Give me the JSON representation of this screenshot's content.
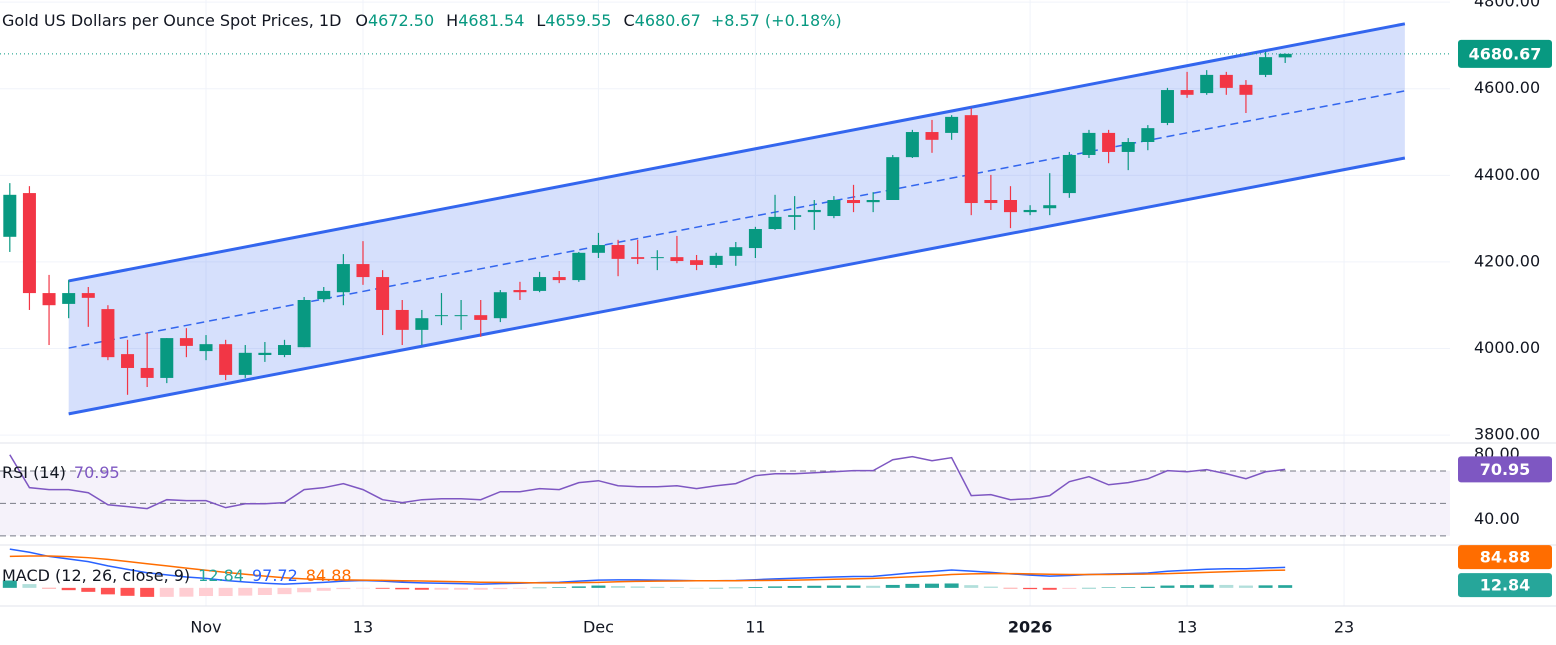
{
  "chart_data": {
    "type": "candlestick",
    "title": "Gold US Dollars per Ounce Spot Prices, 1D",
    "header_fields": [
      {
        "key": "O",
        "value": "4672.50"
      },
      {
        "key": "H",
        "value": "4681.54"
      },
      {
        "key": "L",
        "value": "4659.55"
      },
      {
        "key": "C",
        "value": "4680.67"
      }
    ],
    "change": "+8.57 (+0.18%)",
    "up_color": "#089981",
    "down_color": "#f23645",
    "open": [
      4258,
      4359,
      4128,
      4103,
      4128,
      4091,
      3987,
      3955,
      3932,
      4024,
      3994,
      4010,
      3939,
      3985,
      3985,
      4003,
      4114,
      4130,
      4195,
      4165,
      4089,
      4043,
      4075,
      4075,
      4077,
      4070,
      4135,
      4133,
      4165,
      4158,
      4221,
      4239,
      4211,
      4209,
      4211,
      4204,
      4193,
      4214,
      4232,
      4276,
      4304,
      4315,
      4306,
      4343,
      4338,
      4343,
      4442,
      4500,
      4498,
      4539,
      4343,
      4343,
      4315,
      4324,
      4359,
      4447,
      4498,
      4454,
      4477,
      4521,
      4597,
      4590,
      4632,
      4609,
      4632,
      4672.5
    ],
    "high": [
      4382,
      4375,
      4170,
      4158,
      4142,
      4100,
      4020,
      4036,
      4024,
      4047,
      4031,
      4020,
      4008,
      4015,
      4020,
      4119,
      4142,
      4218,
      4248,
      4181,
      4112,
      4089,
      4128,
      4112,
      4112,
      4135,
      4154,
      4177,
      4179,
      4223,
      4267,
      4251,
      4251,
      4227,
      4260,
      4216,
      4221,
      4246,
      4281,
      4355,
      4352,
      4343,
      4352,
      4378,
      4361,
      4447,
      4505,
      4528,
      4539,
      4555,
      4401,
      4375,
      4331,
      4405,
      4454,
      4505,
      4505,
      4486,
      4516,
      4602,
      4639,
      4643,
      4639,
      4620,
      4685,
      4681.54
    ],
    "low": [
      4223,
      4089,
      4008,
      4070,
      4050,
      3973,
      3893,
      3911,
      3920,
      3980,
      3973,
      3927,
      3932,
      3969,
      3980,
      4003,
      4107,
      4100,
      4147,
      4031,
      4008,
      4008,
      4054,
      4043,
      4027,
      4061,
      4112,
      4130,
      4151,
      4154,
      4209,
      4167,
      4195,
      4181,
      4197,
      4181,
      4186,
      4191,
      4209,
      4274,
      4274,
      4274,
      4301,
      4315,
      4315,
      4343,
      4440,
      4452,
      4482,
      4308,
      4320,
      4278,
      4308,
      4308,
      4348,
      4440,
      4428,
      4412,
      4458,
      4516,
      4579,
      4586,
      4586,
      4544,
      4627,
      4659.55
    ],
    "close": [
      4355,
      4128,
      4100,
      4128,
      4117,
      3980,
      3955,
      3932,
      4024,
      4006,
      4010,
      3939,
      3990,
      3990,
      4008,
      4112,
      4133,
      4195,
      4165,
      4089,
      4043,
      4070,
      4077,
      4077,
      4066,
      4130,
      4130,
      4165,
      4158,
      4221,
      4239,
      4207,
      4207,
      4211,
      4202,
      4193,
      4214,
      4234,
      4276,
      4304,
      4308,
      4320,
      4343,
      4336,
      4343,
      4442,
      4500,
      4482,
      4535,
      4336,
      4336,
      4315,
      4320,
      4331,
      4447,
      4498,
      4454,
      4477,
      4509,
      4597,
      4586,
      4632,
      4602,
      4586,
      4673,
      4680.67
    ],
    "xlim": [
      -0.5,
      73.4
    ],
    "xticks": [
      {
        "value": 10,
        "label": "Nov"
      },
      {
        "value": 18,
        "label": "13"
      },
      {
        "value": 30,
        "label": "Dec"
      },
      {
        "value": 38,
        "label": "11"
      },
      {
        "value": 52,
        "label": "2026"
      },
      {
        "value": 60,
        "label": "13"
      },
      {
        "value": 68,
        "label": "23"
      }
    ],
    "ylim": [
      3784,
      4805
    ],
    "yticks": [
      {
        "value": 3800,
        "label": "3800.00"
      },
      {
        "value": 4000,
        "label": "4000.00"
      },
      {
        "value": 4200,
        "label": "4200.00"
      },
      {
        "value": 4400,
        "label": "4400.00"
      },
      {
        "value": 4600,
        "label": "4600.00"
      },
      {
        "value": 4800,
        "label": "4800.00"
      }
    ],
    "channel": {
      "color": "#3366ee",
      "upper": {
        "x": [
          3,
          71.1
        ],
        "y": [
          4156,
          4750
        ]
      },
      "middle": {
        "x": [
          3,
          71.1
        ],
        "y": [
          4001,
          4595
        ]
      },
      "lower": {
        "x": [
          3,
          71.1
        ],
        "y": [
          3849,
          4440
        ]
      }
    },
    "rsi": {
      "title": "RSI (14)",
      "color": "#7e57c2",
      "ylim": [
        25,
        86
      ],
      "yticks": [
        {
          "value": 40,
          "label": "40.00"
        },
        {
          "value": 80,
          "label": "80.00"
        }
      ],
      "levels": [
        70,
        50,
        30
      ],
      "values": [
        80.0,
        59.7,
        58.5,
        58.5,
        56.6,
        49.2,
        48.0,
        46.8,
        52.3,
        51.7,
        51.7,
        47.4,
        49.8,
        49.8,
        50.5,
        58.5,
        59.7,
        62.2,
        58.5,
        52.3,
        50.5,
        52.3,
        52.9,
        52.9,
        52.3,
        57.2,
        57.2,
        59.1,
        58.5,
        62.8,
        64.0,
        60.9,
        60.3,
        60.3,
        60.9,
        59.1,
        60.9,
        62.2,
        67.1,
        68.3,
        68.3,
        68.9,
        69.5,
        70.2,
        70.2,
        76.9,
        78.8,
        76.3,
        78.2,
        54.8,
        55.4,
        52.3,
        52.9,
        54.8,
        63.4,
        66.5,
        61.5,
        62.8,
        65.2,
        70.2,
        69.5,
        70.8,
        68.3,
        65.2,
        69.5,
        70.95
      ]
    },
    "macd": {
      "title": "MACD (12, 26, close, 9)",
      "ylim": [
        -77,
        195
      ],
      "macd_color": "#2962ff",
      "signal_color": "#ff6d00",
      "hist_color": "#26a69a",
      "macd": [
        185,
        170,
        150,
        138,
        125,
        105,
        88,
        72,
        62,
        52,
        45,
        35,
        28,
        22,
        18,
        22,
        26,
        32,
        35,
        32,
        27,
        24,
        22,
        20,
        18,
        20,
        22,
        25,
        27,
        32,
        37,
        38,
        38,
        37,
        36,
        34,
        34,
        35,
        39,
        43,
        46,
        49,
        52,
        54,
        55,
        63,
        72,
        78,
        85,
        80,
        74,
        67,
        61,
        56,
        59,
        64,
        66,
        68,
        71,
        79,
        84,
        89,
        91,
        91,
        95,
        97.72
      ],
      "signal": [
        150,
        152,
        152,
        149,
        144,
        136,
        126,
        115,
        105,
        94,
        84,
        74,
        65,
        56,
        48,
        43,
        40,
        38,
        37,
        36,
        34,
        33,
        31,
        29,
        27,
        26,
        25,
        24,
        24,
        25,
        26,
        29,
        31,
        32,
        33,
        34,
        34,
        34,
        35,
        36,
        37,
        39,
        41,
        43,
        45,
        49,
        53,
        58,
        64,
        67,
        68,
        68,
        67,
        65,
        64,
        64,
        64,
        65,
        66,
        68,
        71,
        74,
        77,
        80,
        83,
        84.88
      ],
      "histogram": [
        35,
        18,
        -2,
        -11,
        -19,
        -31,
        -38,
        -43,
        -43,
        -42,
        -39,
        -39,
        -37,
        -34,
        -30,
        -21,
        -14,
        -6,
        -2,
        -4,
        -7,
        -9,
        -9,
        -9,
        -9,
        -6,
        -3,
        1,
        3,
        7,
        11,
        9,
        7,
        5,
        3,
        0,
        0,
        1,
        4,
        7,
        9,
        10,
        11,
        11,
        10,
        14,
        19,
        20,
        21,
        13,
        6,
        -1,
        -6,
        -9,
        -5,
        0,
        2,
        3,
        5,
        11,
        13,
        15,
        14,
        11,
        12,
        12.84
      ]
    }
  }
}
